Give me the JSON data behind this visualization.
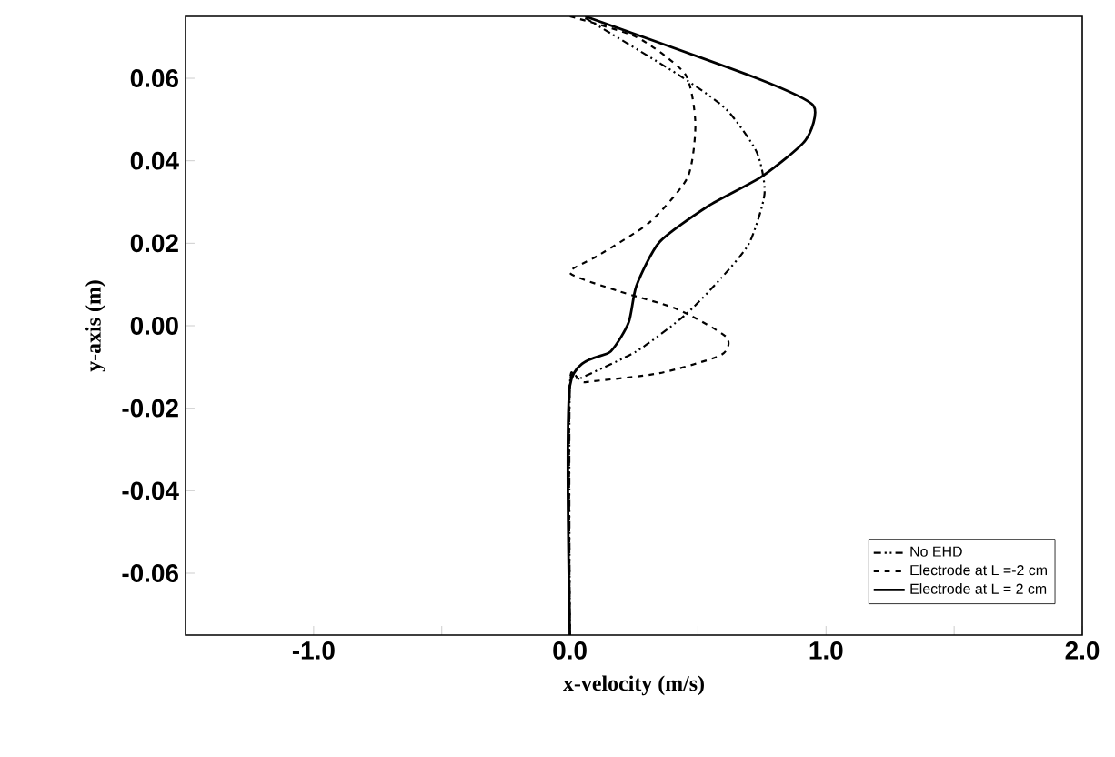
{
  "chart_data": {
    "type": "line",
    "xlabel": "x-velocity (m/s)",
    "ylabel": "y-axis (m)",
    "xlim": [
      -1.5,
      2.0
    ],
    "ylim": [
      -0.075,
      0.075
    ],
    "xticks": [
      {
        "value": -1.0,
        "label": "-1.0"
      },
      {
        "value": -0.5,
        "label": null
      },
      {
        "value": 0.0,
        "label": "0.0"
      },
      {
        "value": 0.5,
        "label": null
      },
      {
        "value": 1.0,
        "label": "1.0"
      },
      {
        "value": 1.5,
        "label": null
      },
      {
        "value": 2.0,
        "label": "2.0"
      }
    ],
    "yticks": [
      {
        "value": -0.06,
        "label": "-0.06"
      },
      {
        "value": -0.04,
        "label": "-0.04"
      },
      {
        "value": -0.02,
        "label": "-0.02"
      },
      {
        "value": 0.0,
        "label": "0.00"
      },
      {
        "value": 0.02,
        "label": "0.02"
      },
      {
        "value": 0.04,
        "label": "0.04"
      },
      {
        "value": 0.06,
        "label": "0.06"
      }
    ],
    "grid": false,
    "legend": "bottom right",
    "marker": "none",
    "series": [
      {
        "name": "No EHD",
        "color": "#000000",
        "line_style": "dashdotdot",
        "x": [
          0.06,
          0.42,
          0.61,
          0.73,
          0.76,
          0.7,
          0.59,
          0.45,
          0.26,
          0.04,
          0.0,
          0.0
        ],
        "values": [
          0.0746,
          0.061,
          0.0525,
          0.042,
          0.032,
          0.02,
          0.0115,
          0.0026,
          -0.0062,
          -0.0128,
          -0.0146,
          -0.075
        ]
      },
      {
        "name": "Electrode at L =-2 cm",
        "color": "#000000",
        "line_style": "dashed",
        "x": [
          0.0,
          0.26,
          0.45,
          0.49,
          0.46,
          0.31,
          0.11,
          0.0,
          0.19,
          0.42,
          0.61,
          0.59,
          0.35,
          0.06,
          0.0,
          0.0
        ],
        "values": [
          0.075,
          0.07,
          0.061,
          0.049,
          0.036,
          0.025,
          0.017,
          0.0128,
          0.0084,
          0.004,
          -0.0027,
          -0.0071,
          -0.0115,
          -0.0137,
          -0.0146,
          -0.075
        ]
      },
      {
        "name": "Electrode at L = 2 cm",
        "color": "#000000",
        "line_style": "solid",
        "x": [
          0.06,
          0.73,
          0.95,
          0.92,
          0.75,
          0.54,
          0.35,
          0.26,
          0.23,
          0.16,
          0.0,
          0.0
        ],
        "values": [
          0.075,
          0.06,
          0.0534,
          0.045,
          0.0362,
          0.029,
          0.0203,
          0.0097,
          0.0009,
          -0.0062,
          -0.0146,
          -0.075
        ]
      }
    ]
  }
}
